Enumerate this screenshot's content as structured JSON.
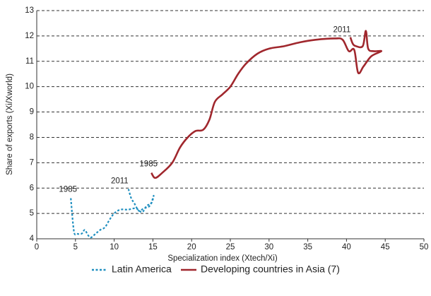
{
  "chart_data": {
    "type": "line",
    "xlabel": "Specialization index (Xtech/Xi)",
    "ylabel": "Share of exports (Xi/Xworld)",
    "xlim": [
      0,
      50
    ],
    "xticks": [
      0,
      5,
      10,
      15,
      20,
      25,
      30,
      35,
      40,
      45,
      50
    ],
    "ylim": [
      4,
      13
    ],
    "yticks": [
      4,
      5,
      6,
      7,
      8,
      9,
      10,
      11,
      12,
      13
    ],
    "grid": true,
    "legend": "bottom",
    "series": [
      {
        "name": "Latin America",
        "color": "#1f8fc0",
        "dashed": true,
        "start_label": "1985",
        "end_label": "2011",
        "x": [
          4.4,
          4.8,
          5.2,
          5.8,
          6.2,
          6.6,
          7.0,
          7.6,
          8.2,
          8.8,
          9.4,
          10.0,
          10.8,
          11.8,
          12.8,
          13.6,
          14.2,
          14.8,
          15.1,
          14.6,
          13.8,
          13.2,
          12.6,
          12.2,
          11.9,
          11.8
        ],
        "values": [
          5.6,
          4.3,
          4.2,
          4.2,
          4.35,
          4.15,
          4.05,
          4.2,
          4.35,
          4.45,
          4.75,
          5.0,
          5.15,
          5.15,
          5.2,
          5.05,
          5.3,
          5.4,
          5.7,
          5.3,
          5.2,
          5.1,
          5.4,
          5.6,
          5.9,
          6.0
        ]
      },
      {
        "name": "Developing countries in Asia (7)",
        "color": "#a0272d",
        "dashed": false,
        "start_label": "1985",
        "end_label": "2011",
        "x": [
          14.8,
          15.3,
          16.2,
          17.5,
          18.5,
          19.5,
          20.5,
          21.5,
          22.3,
          23.0,
          24.0,
          25.0,
          26.0,
          27.0,
          28.5,
          30.0,
          32.0,
          34.0,
          36.0,
          38.5,
          39.5,
          40.3,
          41.0,
          41.5,
          42.2,
          43.2,
          44.5,
          43.5,
          42.8,
          42.5,
          42.1,
          41.2,
          40.8,
          40.5
        ],
        "values": [
          6.6,
          6.4,
          6.6,
          7.0,
          7.6,
          8.0,
          8.25,
          8.3,
          8.7,
          9.4,
          9.7,
          10.0,
          10.5,
          10.9,
          11.3,
          11.5,
          11.6,
          11.75,
          11.85,
          11.9,
          11.85,
          11.4,
          11.45,
          10.55,
          10.8,
          11.2,
          11.4,
          11.4,
          11.5,
          12.2,
          11.6,
          11.6,
          11.7,
          11.95
        ]
      }
    ]
  }
}
